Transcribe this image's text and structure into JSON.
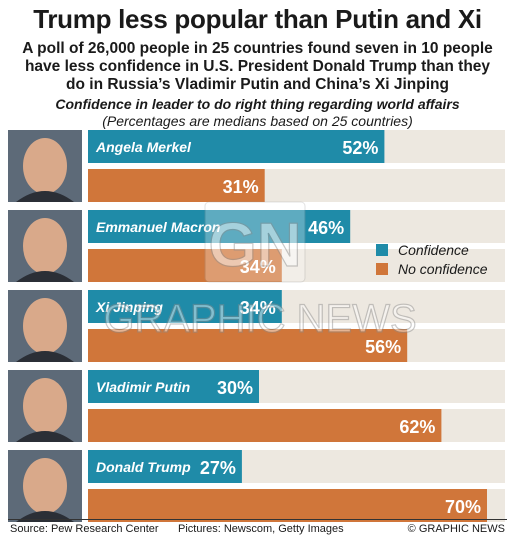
{
  "header": {
    "title": "Trump less popular than Putin and Xi",
    "subtitle": "A poll of 26,000 people in 25 countries found seven in 10 people have less confidence in U.S. President Donald Trump than they do in Russia’s Vladimir Putin and China’s Xi Jinping"
  },
  "chart_data": {
    "type": "bar",
    "orientation": "horizontal",
    "title": "Confidence in leader to do right thing regarding world affairs",
    "subtitle": "(Percentages are medians based on 25 countries)",
    "categories": [
      "Angela Merkel",
      "Emmanuel Macron",
      "Xi Jinping",
      "Vladimir Putin",
      "Donald Trump"
    ],
    "series": [
      {
        "name": "Confidence",
        "values": [
          52,
          46,
          34,
          30,
          27
        ],
        "color": "#1f8ba8"
      },
      {
        "name": "No confidence",
        "values": [
          31,
          34,
          56,
          62,
          70
        ],
        "color": "#d0763a"
      }
    ],
    "value_suffix": "%",
    "xlim": [
      0,
      75
    ],
    "grid": false,
    "legend_position": "right"
  },
  "colors": {
    "confidence": "#1f8ba8",
    "no_confidence": "#d0763a",
    "track": "#ede8e0"
  },
  "footer": {
    "source": "Source: Pew Research Center",
    "pictures": "Pictures: Newscom, Getty Images",
    "credit": "© GRAPHIC NEWS"
  },
  "watermark": {
    "logo": "GN",
    "text": "GRAPHIC NEWS"
  }
}
